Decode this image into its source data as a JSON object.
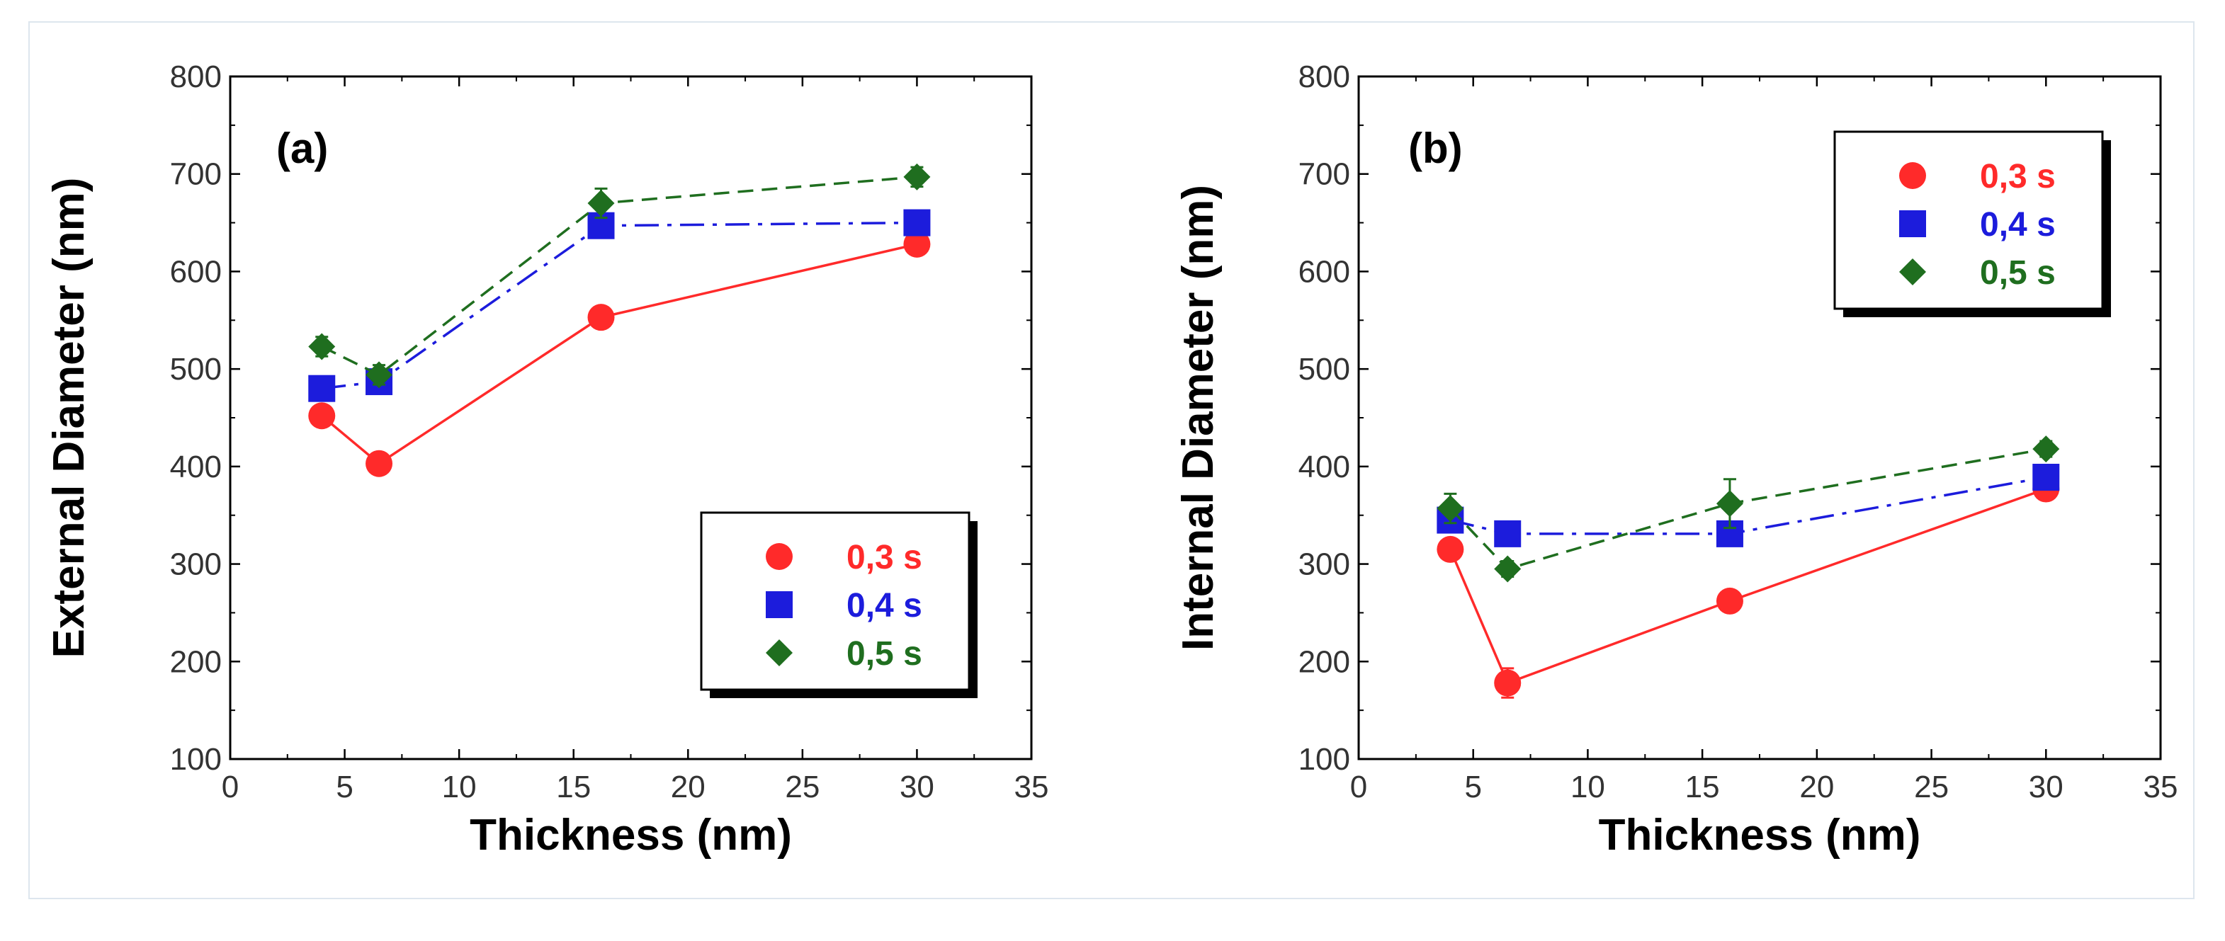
{
  "chart_data": [
    {
      "type": "line",
      "panel_label": "(a)",
      "xlabel": "Thickness (nm)",
      "ylabel": "External Diameter (nm)",
      "xlim": [
        0,
        35
      ],
      "ylim": [
        100,
        800
      ],
      "xticks": [
        "0",
        "5",
        "10",
        "15",
        "20",
        "25",
        "30",
        "35"
      ],
      "yticks": [
        "100",
        "200",
        "300",
        "400",
        "500",
        "600",
        "700",
        "800"
      ],
      "legend_position": "bottom-right",
      "x": [
        4,
        6.5,
        16.2,
        30
      ],
      "series": [
        {
          "name": "0,3 s",
          "color": "#ff2a2a",
          "marker": "circle",
          "linestyle": "solid",
          "values": [
            452,
            403,
            553,
            628
          ],
          "errors": [
            8,
            8,
            8,
            8
          ]
        },
        {
          "name": "0,4 s",
          "color": "#1c1cdc",
          "marker": "square",
          "linestyle": "dashdot",
          "values": [
            480,
            487,
            647,
            650
          ],
          "errors": [
            10,
            8,
            8,
            8
          ]
        },
        {
          "name": "0,5 s",
          "color": "#1f6e1f",
          "marker": "diamond",
          "linestyle": "dashed",
          "values": [
            523,
            494,
            670,
            697
          ],
          "errors": [
            10,
            10,
            15,
            10
          ]
        }
      ]
    },
    {
      "type": "line",
      "panel_label": "(b)",
      "xlabel": "Thickness (nm)",
      "ylabel": "Internal Diameter (nm)",
      "xlim": [
        0,
        35
      ],
      "ylim": [
        100,
        800
      ],
      "xticks": [
        "0",
        "5",
        "10",
        "15",
        "20",
        "25",
        "30",
        "35"
      ],
      "yticks": [
        "100",
        "200",
        "300",
        "400",
        "500",
        "600",
        "700",
        "800"
      ],
      "legend_position": "top-right",
      "x": [
        4,
        6.5,
        16.2,
        30
      ],
      "series": [
        {
          "name": "0,3 s",
          "color": "#ff2a2a",
          "marker": "circle",
          "linestyle": "solid",
          "values": [
            315,
            178,
            262,
            377
          ],
          "errors": [
            8,
            15,
            8,
            8
          ]
        },
        {
          "name": "0,4 s",
          "color": "#1c1cdc",
          "marker": "square",
          "linestyle": "dashdot",
          "values": [
            345,
            331,
            331,
            389
          ],
          "errors": [
            10,
            8,
            8,
            8
          ]
        },
        {
          "name": "0,5 s",
          "color": "#1f6e1f",
          "marker": "diamond",
          "linestyle": "dashed",
          "values": [
            357,
            295,
            362,
            418
          ],
          "errors": [
            15,
            8,
            25,
            8
          ]
        }
      ]
    }
  ]
}
